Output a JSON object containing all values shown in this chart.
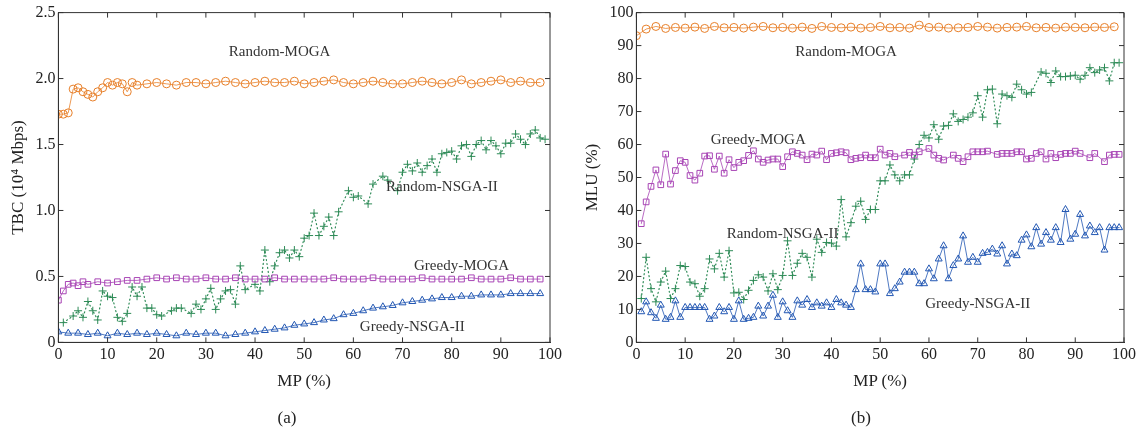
{
  "chart_data": [
    {
      "type": "line",
      "xlabel": "MP (%)",
      "ylabel": "TBC (10⁴ Mbps)",
      "annotations": [
        "(a)"
      ],
      "xlim": [
        0,
        100
      ],
      "ylim": [
        0,
        2.5
      ],
      "xticks": [
        0,
        10,
        20,
        30,
        40,
        50,
        60,
        70,
        80,
        90,
        100
      ],
      "yticks": [
        0,
        0.5,
        {
          "value": 1,
          "label": "1.0"
        },
        1.5,
        {
          "value": 2,
          "label": "2.0"
        },
        2.5
      ],
      "grid": false,
      "legend": false,
      "series": [
        {
          "name": "Random-MOGA",
          "color": "#e8802a",
          "marker": "circle",
          "line_style": "solid",
          "x": [
            0,
            1,
            2,
            3,
            4,
            5,
            6,
            7,
            8,
            9,
            10,
            11,
            12,
            13,
            14,
            15,
            16,
            18,
            20,
            22,
            24,
            26,
            28,
            30,
            32,
            34,
            36,
            38,
            40,
            42,
            44,
            46,
            48,
            50,
            52,
            54,
            56,
            58,
            60,
            62,
            64,
            66,
            68,
            70,
            72,
            74,
            76,
            78,
            80,
            82,
            84,
            86,
            88,
            90,
            92,
            94,
            96,
            98
          ],
          "values": [
            1.73,
            1.73,
            1.74,
            1.92,
            1.93,
            1.9,
            1.88,
            1.86,
            1.9,
            1.93,
            1.97,
            1.95,
            1.97,
            1.96,
            1.9,
            1.97,
            1.95,
            1.96,
            1.97,
            1.96,
            1.95,
            1.97,
            1.97,
            1.96,
            1.97,
            1.98,
            1.97,
            1.96,
            1.97,
            1.98,
            1.97,
            1.97,
            1.98,
            1.96,
            1.97,
            1.98,
            1.99,
            1.97,
            1.96,
            1.97,
            1.98,
            1.97,
            1.96,
            1.96,
            1.97,
            1.98,
            1.97,
            1.96,
            1.97,
            1.99,
            1.96,
            1.97,
            1.98,
            1.99,
            1.97,
            1.98,
            1.97,
            1.97
          ]
        },
        {
          "name": "Greedy-MOGA",
          "color": "#a845b5",
          "marker": "square",
          "line_style": "solid",
          "x": [
            0,
            1,
            2,
            3,
            4,
            5,
            6,
            8,
            10,
            12,
            14,
            16,
            18,
            20,
            22,
            24,
            26,
            28,
            30,
            32,
            34,
            36,
            38,
            40,
            42,
            44,
            46,
            48,
            50,
            52,
            54,
            56,
            58,
            60,
            62,
            64,
            66,
            68,
            70,
            72,
            74,
            76,
            78,
            80,
            82,
            84,
            86,
            88,
            90,
            92,
            94,
            96,
            98
          ],
          "values": [
            0.32,
            0.39,
            0.44,
            0.45,
            0.43,
            0.46,
            0.44,
            0.46,
            0.45,
            0.46,
            0.47,
            0.47,
            0.48,
            0.49,
            0.48,
            0.49,
            0.48,
            0.48,
            0.49,
            0.48,
            0.48,
            0.49,
            0.48,
            0.48,
            0.48,
            0.49,
            0.48,
            0.48,
            0.48,
            0.48,
            0.48,
            0.49,
            0.48,
            0.48,
            0.48,
            0.49,
            0.48,
            0.48,
            0.48,
            0.48,
            0.49,
            0.48,
            0.48,
            0.48,
            0.48,
            0.49,
            0.48,
            0.48,
            0.48,
            0.49,
            0.48,
            0.48,
            0.48
          ]
        },
        {
          "name": "Random-NSGA-II",
          "color": "#2e8b57",
          "marker": "cross",
          "line_style": "dotted",
          "x": [
            1,
            3,
            4,
            5,
            6,
            7,
            8,
            9,
            10,
            11,
            12,
            13,
            14,
            15,
            16,
            17,
            18,
            19,
            20,
            21,
            23,
            24,
            25,
            27,
            28,
            29,
            30,
            31,
            32,
            33,
            34,
            35,
            36,
            37,
            38,
            40,
            41,
            42,
            43,
            44,
            45,
            46,
            47,
            48,
            49,
            50,
            51,
            52,
            53,
            54,
            55,
            56,
            57,
            59,
            60,
            61,
            63,
            64,
            66,
            67,
            69,
            70,
            71,
            72,
            73,
            74,
            75,
            76,
            77,
            78,
            79,
            80,
            81,
            82,
            83,
            84,
            85,
            86,
            87,
            88,
            89,
            90,
            91,
            92,
            93,
            94,
            95,
            96,
            97,
            98,
            99
          ],
          "values": [
            0.15,
            0.2,
            0.24,
            0.19,
            0.31,
            0.24,
            0.17,
            0.39,
            0.35,
            0.34,
            0.19,
            0.16,
            0.22,
            0.42,
            0.35,
            0.42,
            0.26,
            0.26,
            0.21,
            0.2,
            0.24,
            0.26,
            0.26,
            0.22,
            0.29,
            0.25,
            0.33,
            0.41,
            0.25,
            0.33,
            0.39,
            0.4,
            0.29,
            0.58,
            0.4,
            0.44,
            0.39,
            0.7,
            0.46,
            0.58,
            0.68,
            0.7,
            0.64,
            0.7,
            0.65,
            0.79,
            0.81,
            0.98,
            0.81,
            0.88,
            0.95,
            0.81,
            0.99,
            1.15,
            1.1,
            1.11,
            1.05,
            1.2,
            1.26,
            1.23,
            1.15,
            1.29,
            1.35,
            1.3,
            1.36,
            1.29,
            1.34,
            1.39,
            1.29,
            1.43,
            1.44,
            1.45,
            1.39,
            1.49,
            1.5,
            1.41,
            1.5,
            1.53,
            1.46,
            1.53,
            1.49,
            1.43,
            1.51,
            1.51,
            1.58,
            1.54,
            1.5,
            1.58,
            1.61,
            1.55,
            1.54
          ]
        },
        {
          "name": "Greedy-NSGA-II",
          "color": "#2257b3",
          "marker": "triangle",
          "line_style": "solid",
          "x": [
            0,
            2,
            4,
            6,
            8,
            10,
            12,
            14,
            16,
            18,
            20,
            22,
            24,
            26,
            28,
            30,
            32,
            34,
            36,
            38,
            40,
            42,
            44,
            46,
            48,
            50,
            52,
            54,
            56,
            58,
            60,
            62,
            64,
            66,
            68,
            70,
            72,
            74,
            76,
            78,
            80,
            82,
            84,
            86,
            88,
            90,
            92,
            94,
            96,
            98
          ],
          "values": [
            0.08,
            0.07,
            0.07,
            0.06,
            0.07,
            0.05,
            0.07,
            0.06,
            0.07,
            0.06,
            0.07,
            0.06,
            0.05,
            0.07,
            0.06,
            0.07,
            0.07,
            0.05,
            0.06,
            0.07,
            0.08,
            0.09,
            0.1,
            0.11,
            0.13,
            0.14,
            0.15,
            0.17,
            0.18,
            0.21,
            0.22,
            0.24,
            0.26,
            0.27,
            0.28,
            0.3,
            0.31,
            0.32,
            0.33,
            0.34,
            0.34,
            0.35,
            0.35,
            0.36,
            0.36,
            0.36,
            0.37,
            0.37,
            0.37,
            0.37
          ]
        }
      ]
    },
    {
      "type": "line",
      "xlabel": "MP (%)",
      "ylabel": "MLU (%)",
      "annotations": [
        "(b)"
      ],
      "xlim": [
        0,
        100
      ],
      "ylim": [
        0,
        100
      ],
      "xticks": [
        0,
        10,
        20,
        30,
        40,
        50,
        60,
        70,
        80,
        90,
        100
      ],
      "yticks": [
        0,
        10,
        20,
        30,
        40,
        50,
        60,
        70,
        80,
        90,
        100
      ],
      "grid": false,
      "legend": false,
      "series": [
        {
          "name": "Random-MOGA",
          "color": "#e8802a",
          "marker": "circle",
          "line_style": "solid",
          "x": [
            0,
            2,
            4,
            6,
            8,
            10,
            12,
            14,
            16,
            18,
            20,
            22,
            24,
            26,
            28,
            30,
            32,
            34,
            36,
            38,
            40,
            42,
            44,
            46,
            48,
            50,
            52,
            54,
            56,
            58,
            60,
            62,
            64,
            66,
            68,
            70,
            72,
            74,
            76,
            78,
            80,
            82,
            84,
            86,
            88,
            90,
            92,
            94,
            96,
            98
          ],
          "values": [
            93,
            95,
            95.8,
            95.2,
            95.5,
            95.3,
            95.6,
            95.2,
            95.8,
            95.4,
            95.5,
            95.3,
            95.6,
            95.8,
            95.4,
            95.5,
            95.3,
            95.6,
            95.2,
            95.8,
            95.5,
            95.4,
            95.6,
            95.3,
            95.5,
            95.8,
            95.4,
            95.5,
            95.3,
            96.2,
            95.5,
            95.6,
            95.3,
            95.4,
            95.5,
            95.8,
            95.6,
            95.3,
            95.5,
            95.6,
            95.8,
            95.4,
            95.5,
            95.3,
            95.6,
            95.5,
            95.4,
            95.6,
            95.5,
            95.7
          ]
        },
        {
          "name": "Greedy-MOGA",
          "color": "#a845b5",
          "marker": "square",
          "line_style": "solid",
          "x": [
            1,
            2,
            3,
            4,
            5,
            6,
            7,
            8,
            9,
            10,
            11,
            12,
            13,
            14,
            15,
            16,
            17,
            18,
            19,
            20,
            21,
            22,
            23,
            24,
            25,
            26,
            27,
            28,
            29,
            30,
            31,
            32,
            33,
            34,
            35,
            36,
            37,
            38,
            39,
            40,
            41,
            42,
            43,
            44,
            45,
            46,
            47,
            48,
            49,
            50,
            51,
            52,
            53,
            55,
            56,
            57,
            58,
            60,
            61,
            62,
            63,
            65,
            66,
            67,
            68,
            69,
            70,
            71,
            72,
            74,
            75,
            76,
            77,
            78,
            79,
            80,
            81,
            82,
            83,
            84,
            85,
            86,
            87,
            88,
            89,
            90,
            91,
            93,
            94,
            96,
            97,
            98,
            99
          ],
          "values": [
            36,
            42.6,
            47.3,
            52.3,
            47.8,
            57.1,
            48,
            52.1,
            55.1,
            54.6,
            50.6,
            49.2,
            51.3,
            56.5,
            56.6,
            52.5,
            56.5,
            51.3,
            55.4,
            53,
            54.6,
            55.1,
            56.7,
            58.1,
            55.6,
            54.6,
            55.3,
            55.6,
            55.6,
            53.3,
            56.3,
            57.8,
            57.3,
            56.8,
            55.4,
            57.1,
            56.8,
            58,
            55.4,
            57.3,
            57.5,
            57.8,
            57.5,
            55.4,
            55.8,
            56,
            56.8,
            56,
            56,
            58.6,
            56.8,
            57.3,
            56.3,
            56.8,
            57.6,
            56.8,
            57.8,
            58.8,
            56.8,
            55.8,
            55.3,
            56.8,
            55.8,
            54.8,
            56.3,
            57.8,
            57.8,
            57.8,
            58,
            57,
            57.3,
            57.3,
            57.3,
            57.8,
            57.8,
            55.6,
            55.8,
            57.3,
            57.8,
            55.6,
            57.3,
            56,
            57,
            57.3,
            57.3,
            58,
            57.3,
            56,
            57.3,
            54.8,
            56.8,
            57,
            57
          ]
        },
        {
          "name": "Random-NSGA-II",
          "color": "#2e8b57",
          "marker": "cross",
          "line_style": "dotted",
          "x": [
            1,
            2,
            3,
            4,
            5,
            6,
            7,
            8,
            9,
            10,
            11,
            12,
            13,
            14,
            15,
            16,
            17,
            18,
            19,
            20,
            21,
            22,
            23,
            24,
            25,
            26,
            27,
            28,
            29,
            30,
            31,
            32,
            33,
            34,
            35,
            36,
            37,
            38,
            39,
            40,
            41,
            42,
            43,
            44,
            45,
            46,
            47,
            48,
            49,
            50,
            51,
            52,
            53,
            54,
            55,
            56,
            57,
            58,
            59,
            60,
            61,
            62,
            63,
            64,
            65,
            66,
            67,
            68,
            69,
            70,
            71,
            72,
            73,
            74,
            75,
            76,
            77,
            78,
            79,
            80,
            81,
            83,
            84,
            85,
            86,
            87,
            88,
            89,
            90,
            91,
            92,
            93,
            94,
            95,
            96,
            97,
            98,
            99
          ],
          "values": [
            13.3,
            25.8,
            16.3,
            12.3,
            18.3,
            21.6,
            13.3,
            16.3,
            23.3,
            23,
            18.3,
            17.8,
            14,
            16.3,
            25.3,
            22.3,
            27,
            19.8,
            27.8,
            15,
            15.2,
            13,
            15.8,
            18.8,
            20.5,
            19.8,
            15.6,
            20.8,
            16,
            20.3,
            30.8,
            20.3,
            24,
            27,
            25.8,
            19.8,
            31.3,
            27.3,
            30.3,
            30.1,
            29.2,
            43.3,
            32,
            36.3,
            41.3,
            42.8,
            37.3,
            40.3,
            40.3,
            49,
            49,
            53.8,
            50.8,
            49,
            50.8,
            50.8,
            55.6,
            60,
            62.8,
            62,
            66,
            61.6,
            65.6,
            65.8,
            69.3,
            67,
            67.6,
            68.3,
            69.6,
            74.8,
            68.3,
            76.6,
            76.8,
            66.3,
            75.3,
            74.8,
            74.3,
            78.3,
            76.6,
            75.3,
            75.8,
            82,
            81.6,
            78.8,
            82.3,
            80.6,
            80.6,
            80.8,
            81,
            79.8,
            81,
            83.3,
            81.8,
            82.6,
            83.3,
            79.3,
            84.8,
            84.8
          ]
        },
        {
          "name": "Greedy-NSGA-II",
          "color": "#2257b3",
          "marker": "triangle",
          "line_style": "solid",
          "x": [
            1,
            2,
            3,
            4,
            5,
            6,
            7,
            8,
            9,
            10,
            11,
            12,
            13,
            14,
            15,
            16,
            17,
            18,
            19,
            20,
            21,
            22,
            23,
            24,
            25,
            26,
            27,
            28,
            29,
            30,
            31,
            32,
            33,
            34,
            35,
            36,
            37,
            38,
            39,
            40,
            41,
            42,
            43,
            44,
            45,
            46,
            47,
            48,
            49,
            50,
            51,
            52,
            53,
            54,
            55,
            56,
            57,
            58,
            59,
            60,
            61,
            62,
            63,
            64,
            65,
            66,
            67,
            68,
            69,
            70,
            71,
            72,
            73,
            74,
            75,
            76,
            77,
            78,
            79,
            80,
            81,
            82,
            83,
            84,
            85,
            86,
            87,
            88,
            89,
            90,
            91,
            92,
            93,
            94,
            95,
            96,
            97,
            98,
            99
          ],
          "values": [
            9.3,
            12.3,
            9,
            7.3,
            11.3,
            7,
            7.6,
            12.6,
            7.6,
            10.6,
            10.6,
            10.6,
            10.6,
            10.6,
            7,
            8,
            10.6,
            9.3,
            10.6,
            7,
            12.6,
            7,
            7.3,
            7.6,
            11,
            8,
            11,
            14.3,
            7.6,
            12.3,
            9.6,
            7.6,
            12.6,
            11.3,
            13,
            10.6,
            12,
            11,
            12,
            10.6,
            13,
            12,
            11.3,
            10.6,
            16,
            23.8,
            16,
            16,
            15.3,
            23.8,
            23.8,
            14.8,
            16.3,
            18.3,
            21.3,
            21.3,
            21.3,
            17.8,
            17.8,
            22.3,
            19.3,
            25.3,
            29.3,
            19.3,
            23.3,
            25.3,
            32.3,
            24.3,
            25.8,
            24.3,
            27,
            27.3,
            28.3,
            26.8,
            29.3,
            23.8,
            26.8,
            26.3,
            31,
            32.6,
            29,
            34.8,
            29.8,
            33.3,
            31,
            34.8,
            30.3,
            40.3,
            31.3,
            32.8,
            38.8,
            32.3,
            35.3,
            33.3,
            34.8,
            28,
            34.8,
            34.8,
            34.8
          ]
        }
      ]
    }
  ]
}
